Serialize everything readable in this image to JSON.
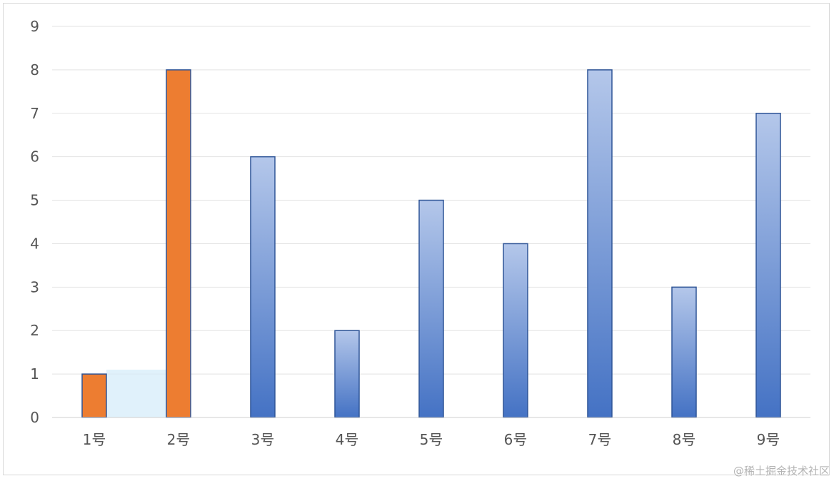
{
  "chart_data": {
    "type": "bar",
    "categories": [
      "1号",
      "2号",
      "3号",
      "4号",
      "5号",
      "6号",
      "7号",
      "8号",
      "9号"
    ],
    "values": [
      1,
      8,
      6,
      2,
      5,
      4,
      8,
      3,
      7
    ],
    "ylim": [
      0,
      9
    ],
    "yticks": [
      0,
      1,
      2,
      3,
      4,
      5,
      6,
      7,
      8,
      9
    ],
    "grid": true,
    "bar_colors": [
      "#ed7d31",
      "#ed7d31",
      "#4472c4",
      "#4472c4",
      "#4472c4",
      "#4472c4",
      "#4472c4",
      "#4472c4",
      "#4472c4"
    ],
    "gradient": {
      "top": "#b4c7ea",
      "bottom": "#4472c4",
      "stroke": "#2f5597"
    },
    "highlight_box": {
      "from_category": "1号",
      "to_category": "2号",
      "value": 1.1,
      "color": "#d6ecfa"
    }
  },
  "watermark": "@稀土掘金技术社区"
}
